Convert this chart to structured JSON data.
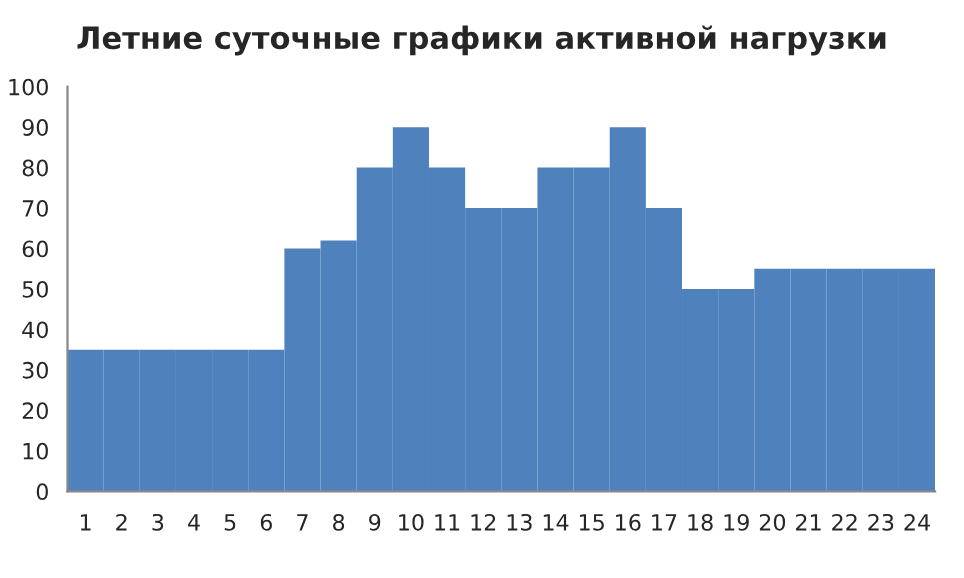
{
  "chart_data": {
    "type": "bar",
    "title": "Летние суточные графики активной нагрузки",
    "categories": [
      "1",
      "2",
      "3",
      "4",
      "5",
      "6",
      "7",
      "8",
      "9",
      "10",
      "11",
      "12",
      "13",
      "14",
      "15",
      "16",
      "17",
      "18",
      "19",
      "20",
      "21",
      "22",
      "23",
      "24"
    ],
    "values": [
      35,
      35,
      35,
      35,
      35,
      35,
      60,
      62,
      80,
      90,
      80,
      70,
      70,
      80,
      80,
      90,
      70,
      50,
      50,
      55,
      55,
      55,
      55,
      55
    ],
    "color": "#4f81bd",
    "ylim": [
      0,
      100
    ],
    "yticks": [
      0,
      10,
      20,
      30,
      40,
      50,
      60,
      70,
      80,
      90,
      100
    ],
    "grid": false,
    "legend": false
  }
}
